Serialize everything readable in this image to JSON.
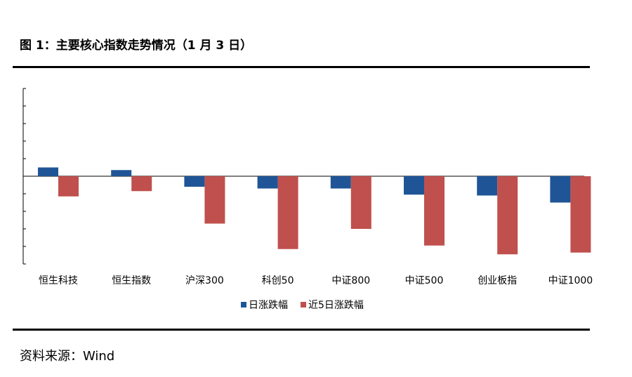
{
  "header": {
    "title": "图 1：主要核心指数走势情况（1 月 3 日）"
  },
  "footer": {
    "source": "资料来源：Wind"
  },
  "colors": {
    "daily": "#1f5597",
    "five_day": "#c0504d"
  },
  "chart_data": {
    "type": "bar",
    "title": "",
    "xlabel": "",
    "ylabel": "",
    "categories": [
      "恒生科技",
      "恒生指数",
      "沪深300",
      "科创50",
      "中证800",
      "中证500",
      "创业板指",
      "中证1000"
    ],
    "series": [
      {
        "name": "日涨跌幅",
        "values": [
          0.5,
          0.35,
          -0.6,
          -0.7,
          -0.7,
          -1.05,
          -1.1,
          -1.5
        ]
      },
      {
        "name": "近5日涨跌幅",
        "values": [
          -1.15,
          -0.85,
          -2.7,
          -4.15,
          -3.0,
          -3.95,
          -4.45,
          -4.35
        ]
      }
    ],
    "ylim": [
      -5,
      5
    ],
    "y_tick_labels_visible": false,
    "grid": false,
    "legend": "bottom-center"
  }
}
